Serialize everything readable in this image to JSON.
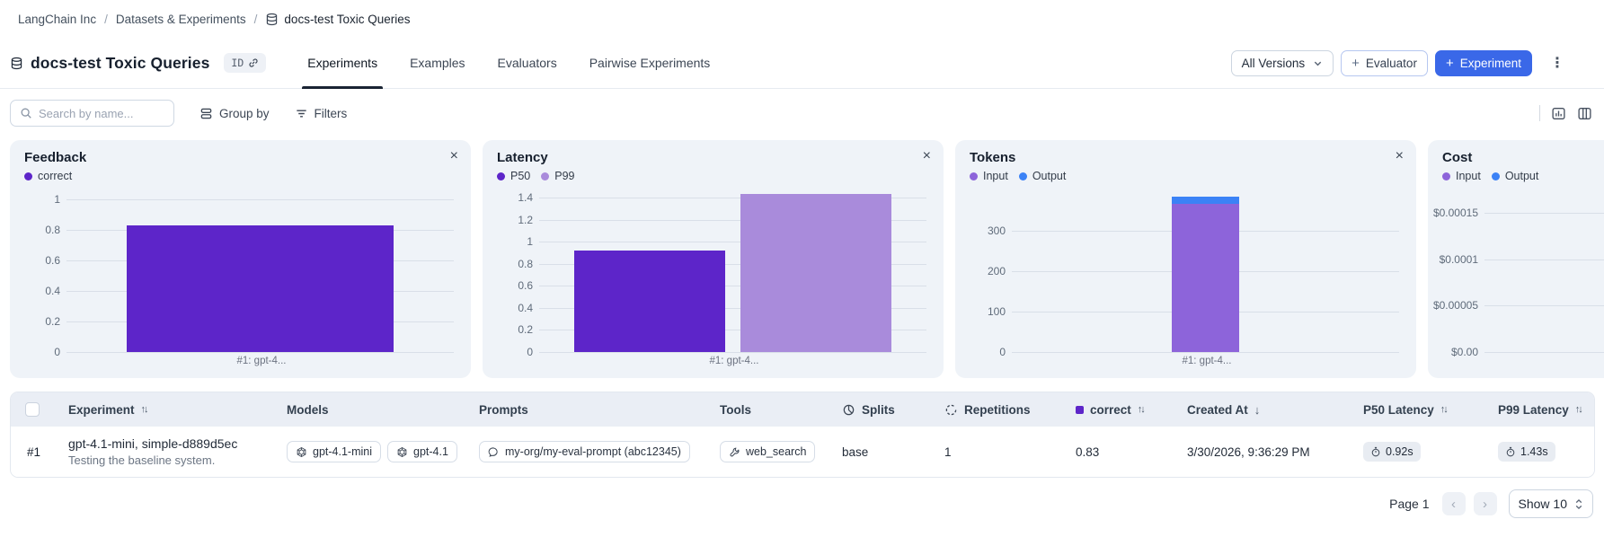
{
  "icons_text": {
    "close": "×",
    "plus": "+",
    "kebab": "⋮",
    "sort_both": "↑↓",
    "sort_desc": "↓",
    "prev_arrow": "‹",
    "next_arrow": "›",
    "breadcrumb_separator": "/"
  },
  "breadcrumb": {
    "items": [
      {
        "label": "LangChain Inc"
      },
      {
        "label": "Datasets & Experiments"
      },
      {
        "label": "docs-test Toxic Queries",
        "icon": "database-icon"
      }
    ]
  },
  "header": {
    "dataset_title": "docs-test Toxic Queries",
    "id_badge_label": "ID",
    "tabs": [
      {
        "label": "Experiments",
        "active": true
      },
      {
        "label": "Examples",
        "active": false
      },
      {
        "label": "Evaluators",
        "active": false
      },
      {
        "label": "Pairwise Experiments",
        "active": false
      }
    ],
    "all_versions_label": "All Versions",
    "evaluator_button_label": "Evaluator",
    "experiment_button_label": "Experiment"
  },
  "toolbar": {
    "search_placeholder": "Search by name...",
    "group_by_label": "Group by",
    "filters_label": "Filters"
  },
  "chart_data": [
    {
      "type": "bar",
      "title": "Feedback",
      "categories": [
        "#1: gpt-4..."
      ],
      "series": [
        {
          "name": "correct",
          "color": "#5d25c9",
          "values": [
            0.83
          ]
        }
      ],
      "yticks": [
        {
          "label": "1",
          "value": 1
        },
        {
          "label": "0.8",
          "value": 0.8
        },
        {
          "label": "0.6",
          "value": 0.6
        },
        {
          "label": "0.4",
          "value": 0.4
        },
        {
          "label": "0.2",
          "value": 0.2
        },
        {
          "label": "0",
          "value": 0
        }
      ],
      "ylim": [
        0,
        1.05
      ],
      "grid": true,
      "legend_position": "top",
      "bar_width_pct": 69,
      "bar_gap_pct": 4
    },
    {
      "type": "bar",
      "title": "Latency",
      "categories": [
        "#1: gpt-4..."
      ],
      "series": [
        {
          "name": "P50",
          "color": "#5d25c9",
          "values": [
            0.92
          ]
        },
        {
          "name": "P99",
          "color": "#a98bdb",
          "values": [
            1.43
          ]
        }
      ],
      "yticks": [
        {
          "label": "1.4",
          "value": 1.4
        },
        {
          "label": "1.2",
          "value": 1.2
        },
        {
          "label": "1",
          "value": 1
        },
        {
          "label": "0.8",
          "value": 0.8
        },
        {
          "label": "0.6",
          "value": 0.6
        },
        {
          "label": "0.4",
          "value": 0.4
        },
        {
          "label": "0.2",
          "value": 0.2
        },
        {
          "label": "0",
          "value": 0
        }
      ],
      "ylim": [
        0,
        1.45
      ],
      "grid": true,
      "legend_position": "top",
      "bar_width_pct": 39,
      "bar_gap_pct": 4
    },
    {
      "type": "stacked-bar",
      "title": "Tokens",
      "categories": [
        "#1: gpt-4..."
      ],
      "series": [
        {
          "name": "Input",
          "color": "#8d64da",
          "values": [
            367
          ]
        },
        {
          "name": "Output",
          "color": "#3b82f6",
          "values": [
            17
          ]
        }
      ],
      "yticks": [
        {
          "label": "300",
          "value": 300
        },
        {
          "label": "200",
          "value": 200
        },
        {
          "label": "100",
          "value": 100
        },
        {
          "label": "0",
          "value": 0
        }
      ],
      "ylim": [
        0,
        396
      ],
      "grid": true,
      "legend_position": "top",
      "bar_width_pct": 17.5,
      "bar_gap_pct": 4
    },
    {
      "type": "stacked-bar",
      "title": "Cost",
      "categories": [],
      "series": [
        {
          "name": "Input",
          "color": "#8d64da",
          "values": []
        },
        {
          "name": "Output",
          "color": "#3b82f6",
          "values": []
        }
      ],
      "yticks": [
        {
          "label": "$0.00015",
          "value": 0.00015
        },
        {
          "label": "$0.0001",
          "value": 0.0001
        },
        {
          "label": "$0.00005",
          "value": 5e-05
        },
        {
          "label": "$0.00",
          "value": 0
        }
      ],
      "ylim": [
        0,
        0.000172
      ],
      "grid": true,
      "legend_position": "top",
      "bar_width_pct": 17.5,
      "bar_gap_pct": 4,
      "note": "panel truncated at right viewport edge"
    }
  ],
  "table": {
    "columns": [
      {
        "label": "Experiment",
        "sort": "both"
      },
      {
        "label": "Models"
      },
      {
        "label": "Prompts"
      },
      {
        "label": "Tools"
      },
      {
        "label": "Splits",
        "icon": "pie-chart-icon"
      },
      {
        "label": "Repetitions",
        "icon": "repeat-icon"
      },
      {
        "label": "correct",
        "swatch": "#5d25c9",
        "sort": "both"
      },
      {
        "label": "Created At",
        "sort": "desc"
      },
      {
        "label": "P50 Latency",
        "sort": "both"
      },
      {
        "label": "P99 Latency",
        "sort": "both"
      }
    ],
    "rows": [
      {
        "index": "#1",
        "name": "gpt-4.1-mini, simple-d889d5ec",
        "description": "Testing the baseline system.",
        "models": [
          "gpt-4.1-mini",
          "gpt-4.1"
        ],
        "prompts": [
          "my-org/my-eval-prompt (abc12345)"
        ],
        "tools": [
          "web_search"
        ],
        "splits": "base",
        "repetitions": "1",
        "correct": "0.83",
        "created_at": "3/30/2026, 9:36:29 PM",
        "p50_latency": "0.92s",
        "p99_latency": "1.43s"
      }
    ]
  },
  "footer": {
    "page_label": "Page 1",
    "show_label": "Show 10"
  },
  "colors": {
    "accent_blue": "#3a68e8",
    "feedback_purple": "#5d25c9",
    "p99_purple": "#a98bdb",
    "input_purple": "#8d64da",
    "output_blue": "#3b82f6",
    "panel_bg": "#eff3f8",
    "table_header_bg": "#eaeef5"
  }
}
